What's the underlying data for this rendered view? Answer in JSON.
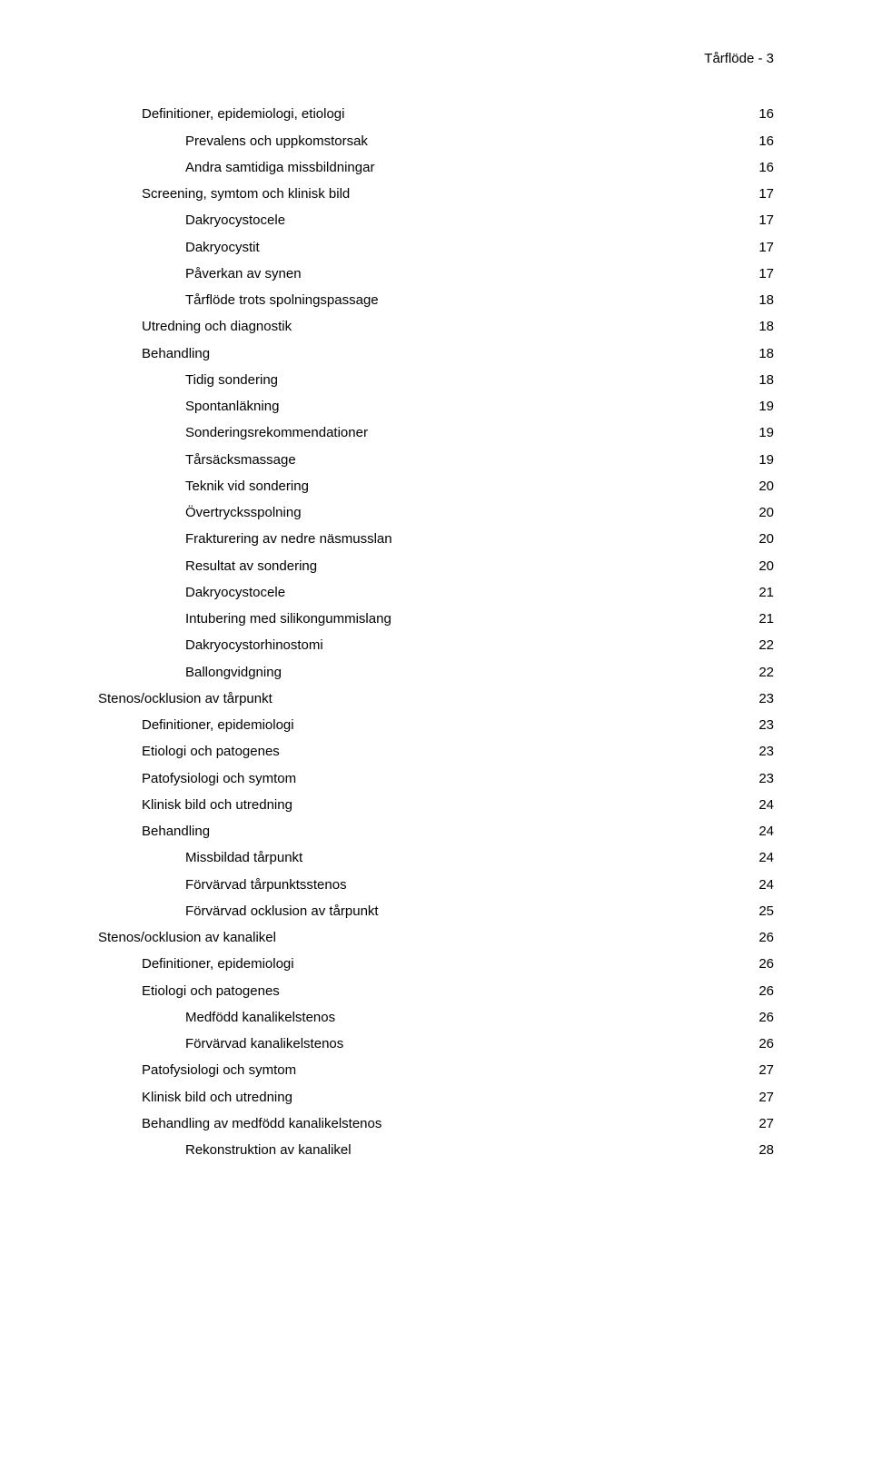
{
  "running_head": "Tårflöde - 3",
  "toc": [
    {
      "label": "Definitioner, epidemiologi, etiologi",
      "page": "16",
      "indent": 1
    },
    {
      "label": "Prevalens och uppkomstorsak",
      "page": "16",
      "indent": 2
    },
    {
      "label": "Andra samtidiga missbildningar",
      "page": "16",
      "indent": 2
    },
    {
      "label": "Screening, symtom och klinisk bild",
      "page": "17",
      "indent": 1
    },
    {
      "label": "Dakryocystocele",
      "page": "17",
      "indent": 2
    },
    {
      "label": "Dakryocystit",
      "page": "17",
      "indent": 2
    },
    {
      "label": "Påverkan av synen",
      "page": "17",
      "indent": 2
    },
    {
      "label": "Tårflöde trots spolningspassage",
      "page": "18",
      "indent": 2
    },
    {
      "label": "Utredning och diagnostik",
      "page": "18",
      "indent": 1
    },
    {
      "label": "Behandling",
      "page": "18",
      "indent": 1
    },
    {
      "label": "Tidig sondering",
      "page": "18",
      "indent": 2
    },
    {
      "label": "Spontanläkning",
      "page": "19",
      "indent": 2
    },
    {
      "label": "Sonderingsrekommendationer",
      "page": "19",
      "indent": 2
    },
    {
      "label": "Tårsäcksmassage",
      "page": "19",
      "indent": 2
    },
    {
      "label": "Teknik vid sondering",
      "page": "20",
      "indent": 2
    },
    {
      "label": "Övertrycksspolning",
      "page": "20",
      "indent": 2
    },
    {
      "label": "Frakturering av nedre näsmusslan",
      "page": "20",
      "indent": 2
    },
    {
      "label": "Resultat av sondering",
      "page": "20",
      "indent": 2
    },
    {
      "label": "Dakryocystocele",
      "page": "21",
      "indent": 2
    },
    {
      "label": "Intubering med silikongummislang",
      "page": "21",
      "indent": 2
    },
    {
      "label": "Dakryocystorhinostomi",
      "page": "22",
      "indent": 2
    },
    {
      "label": "Ballongvidgning",
      "page": "22",
      "indent": 2
    },
    {
      "label": "Stenos/ocklusion av tårpunkt",
      "page": "23",
      "indent": 0
    },
    {
      "label": "Definitioner, epidemiologi",
      "page": "23",
      "indent": 1
    },
    {
      "label": "Etiologi och patogenes",
      "page": "23",
      "indent": 1
    },
    {
      "label": "Patofysiologi och symtom",
      "page": "23",
      "indent": 1
    },
    {
      "label": "Klinisk bild och utredning",
      "page": "24",
      "indent": 1
    },
    {
      "label": "Behandling",
      "page": "24",
      "indent": 1
    },
    {
      "label": "Missbildad tårpunkt",
      "page": "24",
      "indent": 2
    },
    {
      "label": "Förvärvad tårpunktsstenos",
      "page": "24",
      "indent": 2
    },
    {
      "label": "Förvärvad ocklusion av tårpunkt",
      "page": "25",
      "indent": 2
    },
    {
      "label": "Stenos/ocklusion av kanalikel",
      "page": "26",
      "indent": 0
    },
    {
      "label": "Definitioner, epidemiologi",
      "page": "26",
      "indent": 1
    },
    {
      "label": "Etiologi och patogenes",
      "page": "26",
      "indent": 1
    },
    {
      "label": "Medfödd kanalikelstenos",
      "page": "26",
      "indent": 2
    },
    {
      "label": "Förvärvad kanalikelstenos",
      "page": "26",
      "indent": 2
    },
    {
      "label": "Patofysiologi och symtom",
      "page": "27",
      "indent": 1
    },
    {
      "label": "Klinisk bild och utredning",
      "page": "27",
      "indent": 1
    },
    {
      "label": "Behandling av medfödd kanalikelstenos",
      "page": "27",
      "indent": 1
    },
    {
      "label": "Rekonstruktion av kanalikel",
      "page": "28",
      "indent": 2
    }
  ]
}
